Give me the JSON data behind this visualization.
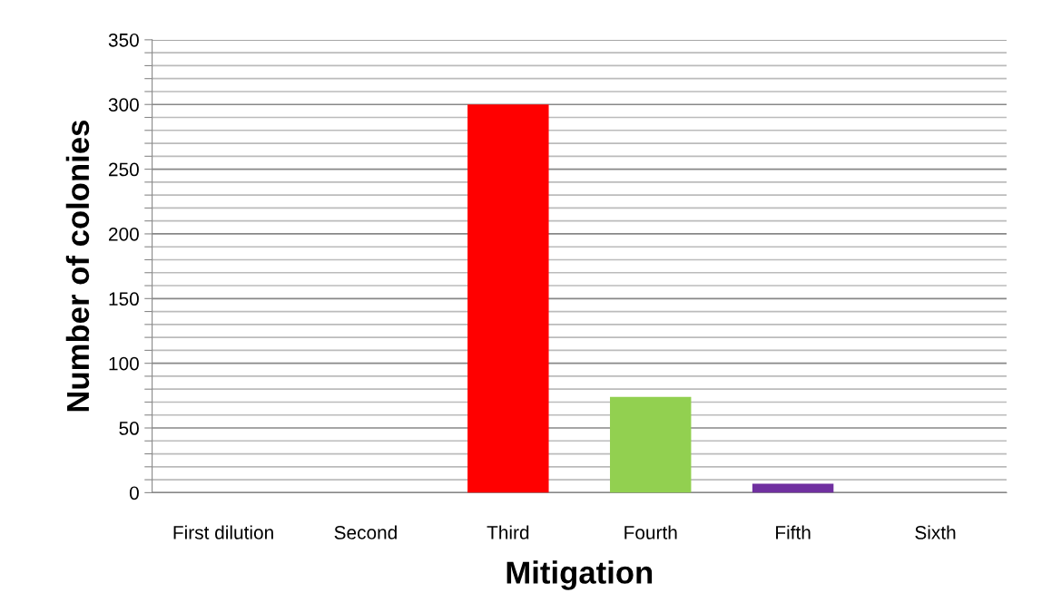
{
  "chart_data": {
    "type": "bar",
    "xlabel": "Mitigation",
    "ylabel": "Number of colonies",
    "categories": [
      "First dilution",
      "Second",
      "Third",
      "Fourth",
      "Fifth",
      "Sixth"
    ],
    "values": [
      0,
      0,
      300,
      74,
      7,
      0
    ],
    "colors": [
      "#ff0000",
      "#ff0000",
      "#ff0000",
      "#92d050",
      "#7030a0",
      "#7030a0"
    ],
    "ylim": [
      0,
      350
    ],
    "yticks": [
      0,
      {
        "value": 10,
        "label": null
      },
      {
        "value": 20,
        "label": null
      },
      {
        "value": 30,
        "label": null
      },
      {
        "value": 40,
        "label": null
      },
      50,
      {
        "value": 60,
        "label": null
      },
      {
        "value": 70,
        "label": null
      },
      {
        "value": 80,
        "label": null
      },
      {
        "value": 90,
        "label": null
      },
      100,
      {
        "value": 110,
        "label": null
      },
      {
        "value": 120,
        "label": null
      },
      {
        "value": 130,
        "label": null
      },
      {
        "value": 140,
        "label": null
      },
      150,
      {
        "value": 160,
        "label": null
      },
      {
        "value": 170,
        "label": null
      },
      {
        "value": 180,
        "label": null
      },
      {
        "value": 190,
        "label": null
      },
      200,
      {
        "value": 210,
        "label": null
      },
      {
        "value": 220,
        "label": null
      },
      {
        "value": 230,
        "label": null
      },
      {
        "value": 240,
        "label": null
      },
      250,
      {
        "value": 260,
        "label": null
      },
      {
        "value": 270,
        "label": null
      },
      {
        "value": 280,
        "label": null
      },
      {
        "value": 290,
        "label": null
      },
      300,
      {
        "value": 310,
        "label": null
      },
      {
        "value": 320,
        "label": null
      },
      {
        "value": 330,
        "label": null
      },
      {
        "value": 340,
        "label": null
      },
      350
    ],
    "grid": true
  }
}
